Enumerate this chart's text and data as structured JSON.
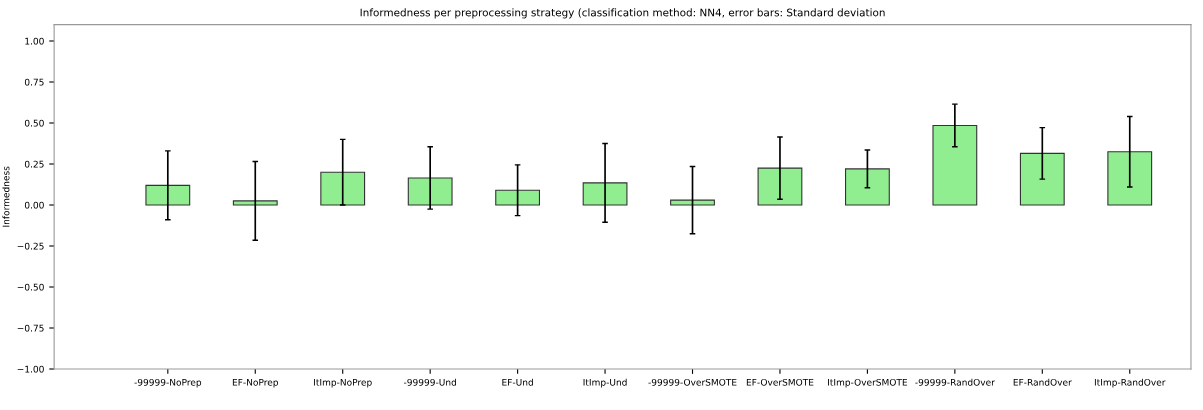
{
  "chart_data": {
    "type": "bar",
    "title": "Informedness per preprocessing strategy (classification method: NN4, error bars: Standard deviation",
    "ylabel": "Informedness",
    "categories": [
      "-99999-NoPrep",
      "EF-NoPrep",
      "ItImp-NoPrep",
      "-99999-Und",
      "EF-Und",
      "ItImp-Und",
      "-99999-OverSMOTE",
      "EF-OverSMOTE",
      "ItImp-OverSMOTE",
      "-99999-RandOver",
      "EF-RandOver",
      "ItImp-RandOver"
    ],
    "values": [
      0.12,
      0.025,
      0.2,
      0.165,
      0.09,
      0.135,
      0.03,
      0.225,
      0.22,
      0.485,
      0.315,
      0.325
    ],
    "errors": [
      0.21,
      0.24,
      0.2,
      0.19,
      0.155,
      0.24,
      0.205,
      0.19,
      0.115,
      0.13,
      0.157,
      0.215
    ],
    "color": "#90ee90",
    "ylim": [
      -1.0,
      1.1
    ],
    "yticks": [
      {
        "value": -1.0,
        "label": "−1.00"
      },
      {
        "value": -0.75,
        "label": "−0.75"
      },
      {
        "value": -0.5,
        "label": "−0.50"
      },
      {
        "value": -0.25,
        "label": "−0.25"
      },
      {
        "value": 0.0,
        "label": "0.00"
      },
      {
        "value": 0.25,
        "label": "0.25"
      },
      {
        "value": 0.5,
        "label": "0.50"
      },
      {
        "value": 0.75,
        "label": "0.75"
      },
      {
        "value": 1.0,
        "label": "1.00"
      }
    ],
    "grid": false,
    "legend": false
  }
}
